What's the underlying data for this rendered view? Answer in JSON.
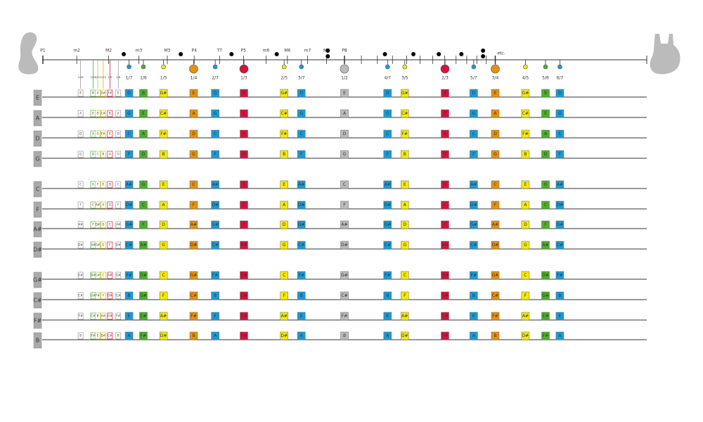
{
  "intervals": [
    "P1",
    "m2",
    "M2",
    "m3",
    "M3",
    "P4",
    "TT",
    "P5",
    "m6",
    "M6",
    "m7",
    "M7",
    "P8"
  ],
  "etc": "etc.",
  "harmonic_columns": [
    {
      "label": "1/7",
      "color": "#1a9ad6"
    },
    {
      "label": "1/6",
      "color": "#4caf2a"
    },
    {
      "label": "1/5",
      "color": "#f5e90a"
    },
    {
      "label": "1/4",
      "color": "#e8900e"
    },
    {
      "label": "2/7",
      "color": "#1a9ad6"
    },
    {
      "label": "1/3",
      "color": "#d8123a"
    },
    {
      "label": "2/5",
      "color": "#f5e90a"
    },
    {
      "label": "3/7",
      "color": "#1a9ad6"
    },
    {
      "label": "1/2",
      "color": "#bbbbbb"
    },
    {
      "label": "4/7",
      "color": "#1a9ad6"
    },
    {
      "label": "3/5",
      "color": "#f5e90a"
    },
    {
      "label": "2/3",
      "color": "#d8123a"
    },
    {
      "label": "5/7",
      "color": "#1a9ad6"
    },
    {
      "label": "3/4",
      "color": "#e8900e"
    },
    {
      "label": "4/5",
      "color": "#f5e90a"
    },
    {
      "label": "5/6",
      "color": "#4caf2a"
    },
    {
      "label": "6/7",
      "color": "#1a9ad6"
    }
  ],
  "small_columns": [
    {
      "label": "1/16",
      "color": "#999999"
    },
    {
      "label": "1/12",
      "color": "#4caf2a"
    },
    {
      "label": "1/11",
      "color": "#9bd14a"
    },
    {
      "label": "1/10",
      "color": "#e8b000"
    },
    {
      "label": "1/9",
      "color": "#d8123a"
    },
    {
      "label": "1/8",
      "color": "#999999"
    }
  ],
  "strings": [
    {
      "name": "E",
      "small": [
        "E",
        "B",
        "A",
        "G#",
        "F#",
        "E"
      ],
      "notes": [
        "D",
        "B",
        "G#",
        "E",
        "D",
        "B",
        "G#",
        "D",
        "E",
        "D",
        "G#",
        "B",
        "D",
        "E",
        "G#",
        "B",
        "D"
      ]
    },
    {
      "name": "A",
      "small": [
        "A",
        "E",
        "D",
        "C#",
        "B",
        "A"
      ],
      "notes": [
        "G",
        "E",
        "C#",
        "A",
        "G",
        "E",
        "C#",
        "G",
        "A",
        "G",
        "C#",
        "E",
        "G",
        "A",
        "C#",
        "E",
        "G"
      ]
    },
    {
      "name": "D",
      "small": [
        "D",
        "A",
        "G",
        "F#",
        "E",
        "D"
      ],
      "notes": [
        "C",
        "A",
        "F#",
        "D",
        "C",
        "A",
        "F#",
        "C",
        "D",
        "C",
        "F#",
        "A",
        "C",
        "D",
        "F#",
        "A",
        "C"
      ]
    },
    {
      "name": "G",
      "small": [
        "G",
        "D",
        "C",
        "B",
        "A",
        "G"
      ],
      "notes": [
        "F",
        "D",
        "B",
        "G",
        "F",
        "D",
        "B",
        "F",
        "G",
        "F",
        "B",
        "D",
        "F",
        "G",
        "B",
        "D",
        "F"
      ]
    },
    {
      "name": "C",
      "small": [
        "C",
        "G",
        "F",
        "E",
        "D",
        "C"
      ],
      "notes": [
        "A#",
        "G",
        "E",
        "C",
        "A#",
        "G",
        "E",
        "A#",
        "C",
        "A#",
        "E",
        "G",
        "A#",
        "C",
        "E",
        "G",
        "A#"
      ]
    },
    {
      "name": "F",
      "small": [
        "F",
        "C",
        "A#",
        "A",
        "G",
        "F"
      ],
      "notes": [
        "D#",
        "C",
        "A",
        "F",
        "D#",
        "C",
        "A",
        "D#",
        "F",
        "D#",
        "A",
        "C",
        "D#",
        "F",
        "A",
        "C",
        "D#"
      ]
    },
    {
      "name": "A#",
      "small": [
        "A#",
        "F",
        "D#",
        "D",
        "C",
        "A#"
      ],
      "notes": [
        "G#",
        "F",
        "D",
        "A#",
        "G#",
        "F",
        "D",
        "G#",
        "A#",
        "G#",
        "D",
        "F",
        "G#",
        "A#",
        "D",
        "F",
        "G#"
      ]
    },
    {
      "name": "D#",
      "small": [
        "D#",
        "A#",
        "G#",
        "G",
        "F",
        "D#"
      ],
      "notes": [
        "C#",
        "A#",
        "G",
        "D#",
        "C#",
        "A#",
        "G",
        "C#",
        "D#",
        "C#",
        "G",
        "A#",
        "C#",
        "D#",
        "G",
        "A#",
        "C#"
      ]
    },
    {
      "name": "G#",
      "small": [
        "G#",
        "D#",
        "C#",
        "C",
        "A#",
        "G#"
      ],
      "notes": [
        "F#",
        "D#",
        "C",
        "G#",
        "F#",
        "D#",
        "C",
        "F#",
        "G#",
        "F#",
        "C",
        "D#",
        "F#",
        "G#",
        "C",
        "D#",
        "F#"
      ]
    },
    {
      "name": "C#",
      "small": [
        "C#",
        "G#",
        "F#",
        "F",
        "D#",
        "C#"
      ],
      "notes": [
        "B",
        "G#",
        "F",
        "C#",
        "B",
        "G#",
        "F",
        "B",
        "C#",
        "B",
        "F",
        "G#",
        "B",
        "C#",
        "F",
        "G#",
        "B"
      ]
    },
    {
      "name": "F#",
      "small": [
        "F#",
        "C#",
        "B",
        "A#",
        "G#",
        "F#"
      ],
      "notes": [
        "E",
        "C#",
        "A#",
        "F#",
        "E",
        "C#",
        "A#",
        "E",
        "F#",
        "E",
        "A#",
        "C#",
        "E",
        "F#",
        "A#",
        "C#",
        "E"
      ]
    },
    {
      "name": "B",
      "small": [
        "B",
        "F#",
        "E",
        "D#",
        "C#",
        "B"
      ],
      "notes": [
        "A",
        "F#",
        "D#",
        "B",
        "A",
        "F#",
        "D#",
        "A",
        "B",
        "A",
        "D#",
        "F#",
        "A",
        "B",
        "D#",
        "F#",
        "A"
      ]
    }
  ]
}
